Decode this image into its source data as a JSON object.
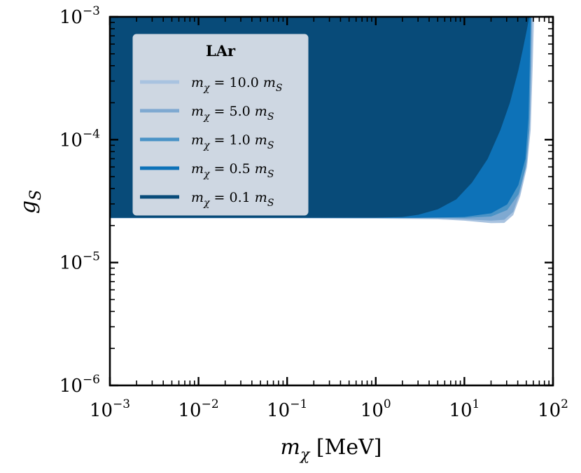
{
  "chart_data": {
    "type": "area",
    "title": "",
    "xlabel": "m_χ [MeV]",
    "xlabel_parts": {
      "var": "m",
      "sub": "χ",
      "unit": "[MeV]"
    },
    "ylabel": "g_S",
    "ylabel_parts": {
      "var": "g",
      "sub": "S"
    },
    "xscale": "log",
    "yscale": "log",
    "xlim": [
      0.001,
      100
    ],
    "ylim": [
      1e-06,
      0.001
    ],
    "x_ticks": [
      {
        "base": "10",
        "exp": "−3",
        "value": 0.001
      },
      {
        "base": "10",
        "exp": "−2",
        "value": 0.01
      },
      {
        "base": "10",
        "exp": "−1",
        "value": 0.1
      },
      {
        "base": "10",
        "exp": "0",
        "value": 1
      },
      {
        "base": "10",
        "exp": "1",
        "value": 10
      },
      {
        "base": "10",
        "exp": "2",
        "value": 100
      }
    ],
    "y_ticks": [
      {
        "base": "10",
        "exp": "−6",
        "value": 1e-06
      },
      {
        "base": "10",
        "exp": "−5",
        "value": 1e-05
      },
      {
        "base": "10",
        "exp": "−4",
        "value": 0.0001
      },
      {
        "base": "10",
        "exp": "−3",
        "value": 0.001
      }
    ],
    "legend": {
      "title": "LAr",
      "placement": "upper-left"
    },
    "series": [
      {
        "name": "m_χ = 10.0 m_S",
        "label_parts": {
          "lhs": "m",
          "lhs_sub": "χ",
          "coef": "10.0",
          "rhs": "m",
          "rhs_sub": "S"
        },
        "color": "#a9c3e0",
        "fill_above": true,
        "x": [
          0.001,
          0.01,
          0.1,
          1,
          5,
          10,
          20,
          28,
          35,
          42,
          50,
          55,
          58,
          60
        ],
        "y": [
          2.32e-05,
          2.32e-05,
          2.32e-05,
          2.31e-05,
          2.28e-05,
          2.22e-05,
          2.12e-05,
          2.13e-05,
          2.45e-05,
          3.5e-05,
          6e-05,
          0.00012,
          0.0004,
          0.001
        ]
      },
      {
        "name": "m_χ = 5.0 m_S",
        "label_parts": {
          "lhs": "m",
          "lhs_sub": "χ",
          "coef": "5.0",
          "rhs": "m",
          "rhs_sub": "S"
        },
        "color": "#7fa9d1",
        "fill_above": true,
        "x": [
          0.001,
          0.01,
          0.1,
          1,
          5,
          10,
          20,
          28,
          35,
          42,
          50,
          54,
          56,
          57
        ],
        "y": [
          2.34e-05,
          2.34e-05,
          2.34e-05,
          2.33e-05,
          2.32e-05,
          2.28e-05,
          2.22e-05,
          2.26e-05,
          2.6e-05,
          3.8e-05,
          6.6e-05,
          0.00014,
          0.0004,
          0.001
        ]
      },
      {
        "name": "m_χ = 1.0 m_S",
        "label_parts": {
          "lhs": "m",
          "lhs_sub": "χ",
          "coef": "1.0",
          "rhs": "m",
          "rhs_sub": "S"
        },
        "color": "#4a93c6",
        "fill_above": true,
        "x": [
          0.001,
          0.01,
          0.1,
          1,
          5,
          10,
          20,
          30,
          40,
          48,
          53,
          55,
          56
        ],
        "y": [
          2.34e-05,
          2.34e-05,
          2.34e-05,
          2.34e-05,
          2.34e-05,
          2.34e-05,
          2.4e-05,
          2.7e-05,
          3.6e-05,
          5.8e-05,
          0.00012,
          0.0004,
          0.001
        ]
      },
      {
        "name": "m_χ = 0.5 m_S",
        "label_parts": {
          "lhs": "m",
          "lhs_sub": "χ",
          "coef": "0.5",
          "rhs": "m",
          "rhs_sub": "S"
        },
        "color": "#0d72b8",
        "fill_above": true,
        "x": [
          0.001,
          0.01,
          0.1,
          1,
          3,
          10,
          20,
          30,
          40,
          48,
          52,
          54,
          55
        ],
        "y": [
          2.34e-05,
          2.34e-05,
          2.34e-05,
          2.34e-05,
          2.34e-05,
          2.38e-05,
          2.55e-05,
          3e-05,
          4.3e-05,
          7e-05,
          0.00015,
          0.0005,
          0.001
        ]
      },
      {
        "name": "m_χ = 0.1 m_S",
        "label_parts": {
          "lhs": "m",
          "lhs_sub": "χ",
          "coef": "0.1",
          "rhs": "m",
          "rhs_sub": "S"
        },
        "color": "#084b79",
        "fill_above": true,
        "x": [
          0.001,
          0.01,
          0.1,
          1,
          2,
          3,
          5,
          8,
          12,
          18,
          25,
          32,
          40,
          45,
          50,
          53
        ],
        "y": [
          2.34e-05,
          2.34e-05,
          2.34e-05,
          2.35e-05,
          2.38e-05,
          2.48e-05,
          2.75e-05,
          3.3e-05,
          4.5e-05,
          7e-05,
          0.00012,
          0.0002,
          0.00037,
          0.00055,
          0.0008,
          0.001
        ]
      }
    ]
  }
}
